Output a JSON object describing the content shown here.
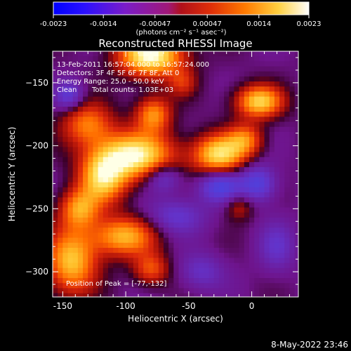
{
  "colorbar": {
    "ticks": [
      "-0.0023",
      "-0.0014",
      "-0.00047",
      "0.00047",
      "0.0014",
      "0.0023"
    ],
    "unit_label": "(photons cm⁻² s⁻¹ asec⁻²)",
    "range": [
      -0.0023,
      0.0023
    ]
  },
  "chart_data": {
    "type": "heatmap",
    "title": "Reconstructed RHESSI Image",
    "xlabel": "Heliocentric X (arcsec)",
    "ylabel": "Heliocentric Y (arcsec)",
    "xlim": [
      -158,
      37
    ],
    "ylim": [
      -320,
      -125
    ],
    "x_ticks": [
      -150,
      -100,
      -50,
      0
    ],
    "y_ticks": [
      -150,
      -200,
      -250,
      -300
    ],
    "annotations": [
      "13-Feb-2011 16:57:04.000 to 16:57:24.000",
      "Detectors: 3F 4F 5F 6F 7F 8F, Att 0",
      "Energy Range: 25.0 - 50.0 keV",
      "Clean",
      "Total counts: 1.03E+03",
      "Position of Peak = [-77,-132]"
    ],
    "peak": [
      -77,
      -132
    ],
    "blobs": [
      {
        "x": -80,
        "y": -128,
        "sx": 18,
        "sy": 12,
        "v": 1.0
      },
      {
        "x": -93,
        "y": -208,
        "sx": 22,
        "sy": 13,
        "v": 0.95
      },
      {
        "x": -118,
        "y": -226,
        "sx": 13,
        "sy": 14,
        "v": 0.75
      },
      {
        "x": -130,
        "y": -183,
        "sx": 14,
        "sy": 12,
        "v": 0.55
      },
      {
        "x": -78,
        "y": -175,
        "sx": 10,
        "sy": 10,
        "v": 0.6
      },
      {
        "x": -26,
        "y": -207,
        "sx": 14,
        "sy": 11,
        "v": 0.85
      },
      {
        "x": 6,
        "y": -165,
        "sx": 13,
        "sy": 9,
        "v": 0.8
      },
      {
        "x": -5,
        "y": -195,
        "sx": 10,
        "sy": 9,
        "v": 0.5
      },
      {
        "x": -137,
        "y": -250,
        "sx": 11,
        "sy": 11,
        "v": 0.6
      },
      {
        "x": -102,
        "y": -272,
        "sx": 18,
        "sy": 11,
        "v": 0.7
      },
      {
        "x": -143,
        "y": -292,
        "sx": 14,
        "sy": 18,
        "v": 0.75
      },
      {
        "x": -80,
        "y": -298,
        "sx": 10,
        "sy": 9,
        "v": 0.45
      },
      {
        "x": -10,
        "y": -248,
        "sx": 8,
        "sy": 8,
        "v": 0.3
      },
      {
        "x": -55,
        "y": -150,
        "sx": 8,
        "sy": 8,
        "v": 0.3
      },
      {
        "x": -25,
        "y": -232,
        "sx": 12,
        "sy": 9,
        "v": -0.55
      },
      {
        "x": 5,
        "y": -230,
        "sx": 10,
        "sy": 10,
        "v": -0.5
      },
      {
        "x": -60,
        "y": -256,
        "sx": 16,
        "sy": 10,
        "v": -0.35
      },
      {
        "x": -70,
        "y": -225,
        "sx": 10,
        "sy": 8,
        "v": -0.4
      },
      {
        "x": -145,
        "y": -160,
        "sx": 8,
        "sy": 8,
        "v": -0.4
      },
      {
        "x": -40,
        "y": -300,
        "sx": 12,
        "sy": 10,
        "v": -0.3
      },
      {
        "x": 20,
        "y": -280,
        "sx": 10,
        "sy": 14,
        "v": -0.3
      }
    ]
  },
  "footer": {
    "timestamp": "8-May-2022 23:46"
  }
}
